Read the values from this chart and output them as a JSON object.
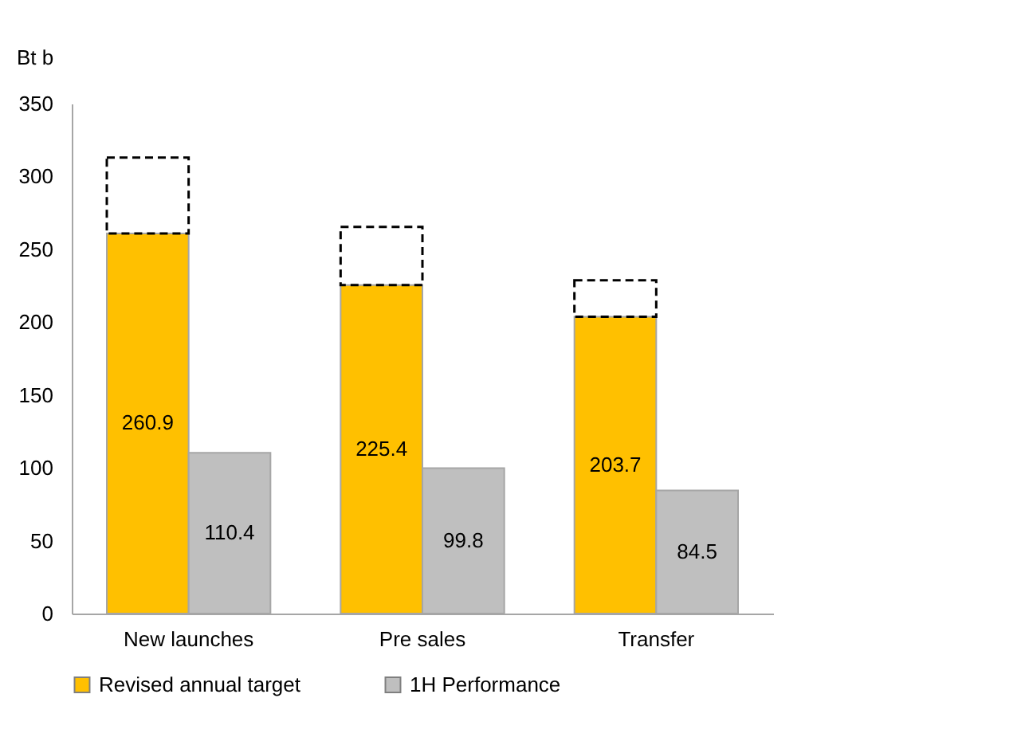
{
  "chart_data": {
    "type": "bar",
    "ylabel": "Bt b",
    "categories": [
      "New launches",
      "Pre sales",
      "Transfer"
    ],
    "series": [
      {
        "name": "Revised annual target",
        "color": "#ffc000",
        "values": [
          260.9,
          225.4,
          203.7
        ],
        "value_labels": [
          "260.9",
          "225.4",
          "203.7"
        ]
      },
      {
        "color": "#000000",
        "line_style": "dashed",
        "base": [
          260.9,
          225.4,
          203.7
        ],
        "values": [
          52,
          40,
          25
        ]
      },
      {
        "name": "1H Performance",
        "color": "#bfbfbf",
        "values": [
          110.4,
          99.8,
          84.5
        ],
        "value_labels": [
          "110.4",
          "99.8",
          "84.5"
        ]
      }
    ],
    "ylim": [
      0,
      350
    ],
    "yticks": [
      0,
      50,
      100,
      150,
      200,
      250,
      300,
      350
    ],
    "grid": false,
    "legend": "bottom"
  }
}
